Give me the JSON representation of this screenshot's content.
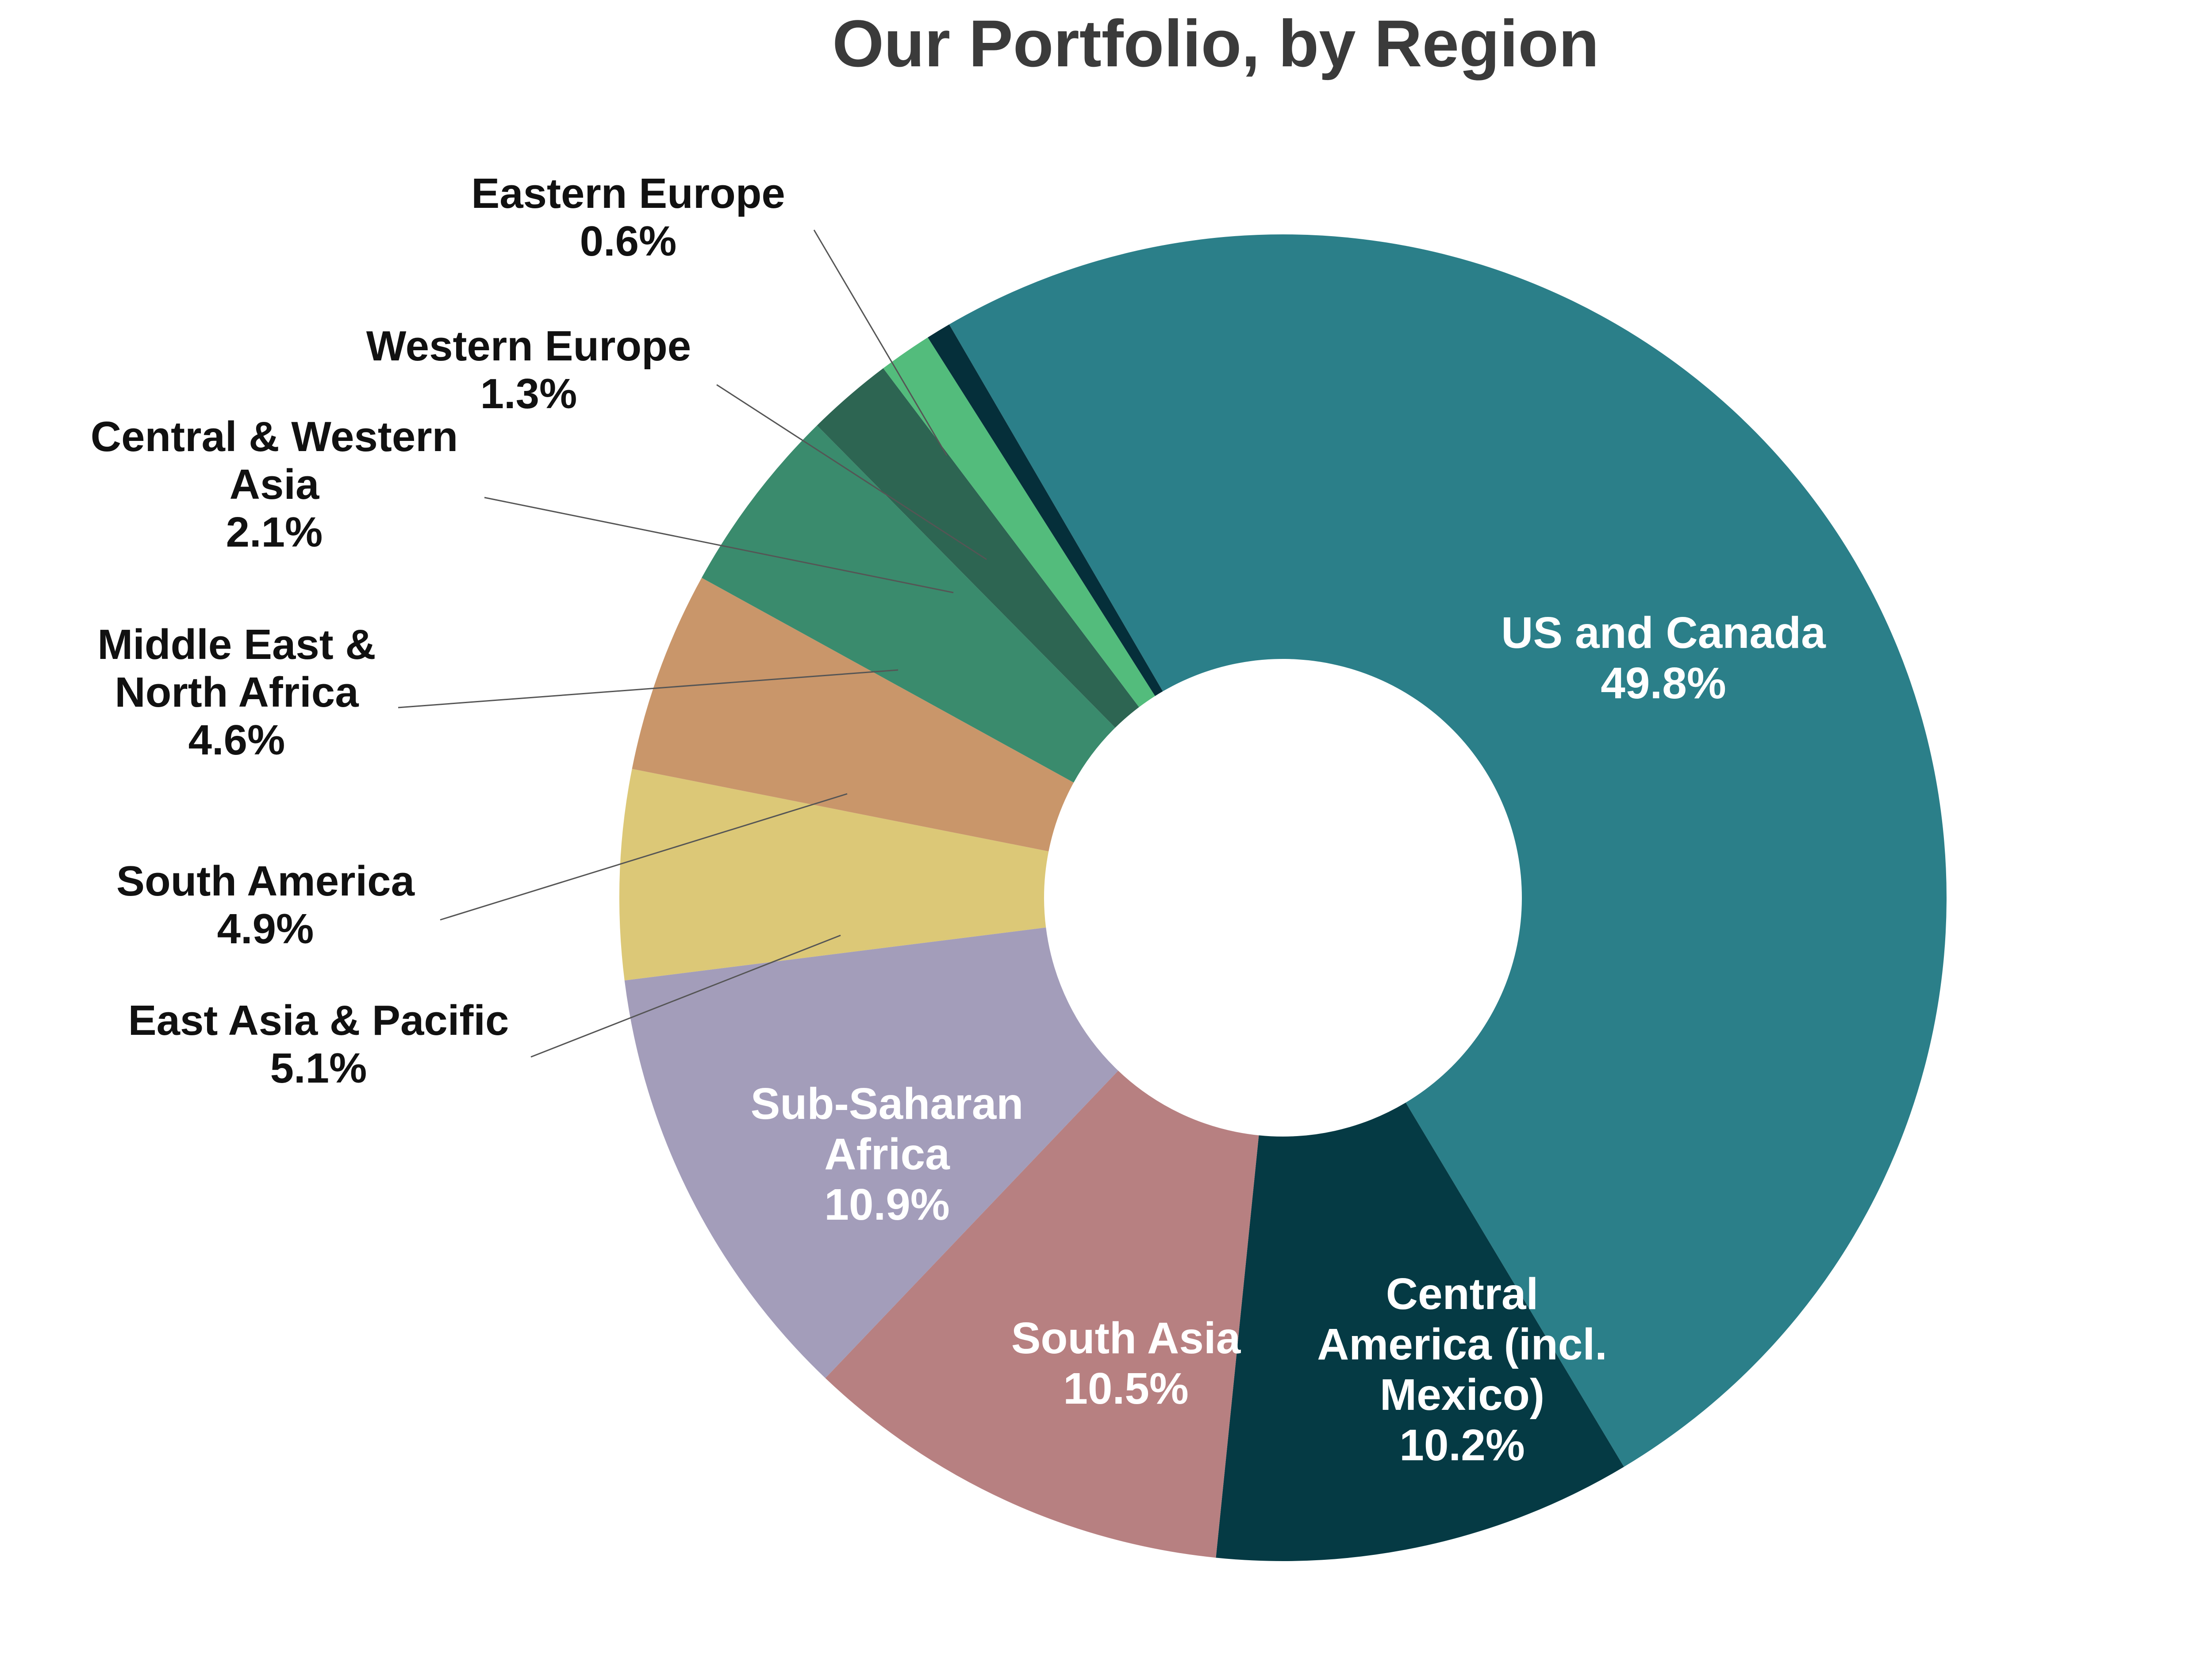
{
  "chart_data": {
    "type": "pie",
    "donut": true,
    "title": "Our Portfolio, by Region",
    "unit": "%",
    "slices": [
      {
        "label_lines": [
          "US and Canada"
        ],
        "value": 49.8,
        "value_label": "49.8%",
        "color": "#2b7f89",
        "label_position": "inside"
      },
      {
        "label_lines": [
          "Central",
          "America (incl.",
          "Mexico)"
        ],
        "value": 10.2,
        "value_label": "10.2%",
        "color": "#053a44",
        "label_position": "inside"
      },
      {
        "label_lines": [
          "South Asia"
        ],
        "value": 10.5,
        "value_label": "10.5%",
        "color": "#b78081",
        "label_position": "inside"
      },
      {
        "label_lines": [
          "Sub-Saharan",
          "Africa"
        ],
        "value": 10.9,
        "value_label": "10.9%",
        "color": "#a39dba",
        "label_position": "inside"
      },
      {
        "label_lines": [
          "East Asia & Pacific"
        ],
        "value": 5.1,
        "value_label": "5.1%",
        "color": "#dcc877",
        "label_position": "outside"
      },
      {
        "label_lines": [
          "South America"
        ],
        "value": 4.9,
        "value_label": "4.9%",
        "color": "#c9966a",
        "label_position": "outside"
      },
      {
        "label_lines": [
          "Middle East &",
          "North Africa"
        ],
        "value": 4.6,
        "value_label": "4.6%",
        "color": "#3a8b6d",
        "label_position": "outside"
      },
      {
        "label_lines": [
          "Central & Western",
          "Asia"
        ],
        "value": 2.1,
        "value_label": "2.1%",
        "color": "#2d6552",
        "label_position": "outside"
      },
      {
        "label_lines": [
          "Western Europe"
        ],
        "value": 1.3,
        "value_label": "1.3%",
        "color": "#53bc7c",
        "label_position": "outside"
      },
      {
        "label_lines": [
          "Eastern Europe"
        ],
        "value": 0.6,
        "value_label": "0.6%",
        "color": "#052f3a",
        "label_position": "outside"
      }
    ]
  }
}
